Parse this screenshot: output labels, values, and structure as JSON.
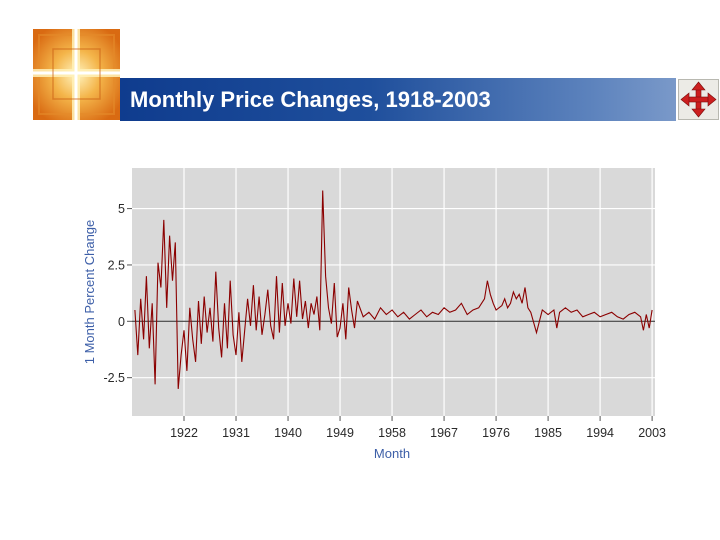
{
  "slide": {
    "title": "Monthly Price Changes, 1918-2003"
  },
  "icons": {
    "logo": "cross-logo-icon",
    "move": "move-arrows-icon"
  },
  "colors": {
    "title_bar": "#1f4f9c",
    "series": "#8b0000",
    "plot_background": "#d9d9d9",
    "axis_title": "#3d5fa8"
  },
  "chart_data": {
    "type": "line",
    "xlabel": "Month",
    "ylabel": "1 Month Percent Change",
    "xlim": [
      1913,
      2003.5
    ],
    "ylim": [
      -4.2,
      6.8
    ],
    "x_ticks": [
      1922,
      1931,
      1940,
      1949,
      1958,
      1967,
      1976,
      1985,
      1994,
      2003
    ],
    "x_tick_labels": [
      "1922",
      "1931",
      "1940",
      "1949",
      "1958",
      "1967",
      "1976",
      "1985",
      "1994",
      "2003"
    ],
    "y_ticks": [
      5,
      2.5,
      0,
      -2.5
    ],
    "y_tick_labels": [
      "5",
      "2.5",
      "0",
      "-2.5"
    ],
    "grid": true,
    "zero_line": true,
    "series": [
      {
        "x": [
          1913.5,
          1914.0,
          1914.5,
          1915.0,
          1915.5,
          1916.0,
          1916.5,
          1917.0,
          1917.5,
          1918.0,
          1918.5,
          1919.0,
          1919.5,
          1920.0,
          1920.5,
          1921.0,
          1921.5,
          1922.0,
          1922.5,
          1923.0,
          1923.5,
          1924.0,
          1924.5,
          1925.0,
          1925.5,
          1926.0,
          1926.5,
          1927.0,
          1927.5,
          1928.0,
          1928.5,
          1929.0,
          1929.5,
          1930.0,
          1930.5,
          1931.0,
          1931.5,
          1932.0,
          1932.5,
          1933.0,
          1933.5,
          1934.0,
          1934.5,
          1935.0,
          1935.5,
          1936.0,
          1936.5,
          1937.0,
          1937.5,
          1938.0,
          1938.5,
          1939.0,
          1939.5,
          1940.0,
          1940.5,
          1941.0,
          1941.5,
          1942.0,
          1942.5,
          1943.0,
          1943.5,
          1944.0,
          1944.5,
          1945.0,
          1945.5,
          1946.0,
          1946.5,
          1947.0,
          1947.5,
          1948.0,
          1948.5,
          1949.0,
          1949.5,
          1950.0,
          1950.5,
          1951.0,
          1951.5,
          1952.0,
          1953.0,
          1954.0,
          1955.0,
          1956.0,
          1957.0,
          1958.0,
          1959.0,
          1960.0,
          1961.0,
          1962.0,
          1963.0,
          1964.0,
          1965.0,
          1966.0,
          1967.0,
          1968.0,
          1969.0,
          1970.0,
          1971.0,
          1972.0,
          1973.0,
          1973.5,
          1974.0,
          1974.5,
          1975.0,
          1975.5,
          1976.0,
          1977.0,
          1977.5,
          1978.0,
          1978.5,
          1979.0,
          1979.5,
          1980.0,
          1980.5,
          1981.0,
          1981.5,
          1982.0,
          1983.0,
          1984.0,
          1985.0,
          1986.0,
          1986.5,
          1987.0,
          1988.0,
          1989.0,
          1990.0,
          1991.0,
          1992.0,
          1993.0,
          1994.0,
          1995.0,
          1996.0,
          1997.0,
          1998.0,
          1999.0,
          2000.0,
          2001.0,
          2001.5,
          2002.0,
          2002.5,
          2003.0
        ],
        "values": [
          0.5,
          -1.5,
          1.0,
          -0.8,
          2.0,
          -1.2,
          0.8,
          -2.8,
          2.6,
          1.5,
          4.5,
          0.6,
          3.8,
          1.8,
          3.5,
          -3.0,
          -1.5,
          -0.4,
          -2.2,
          0.6,
          -0.8,
          -1.8,
          0.9,
          -1.0,
          1.1,
          -0.5,
          0.6,
          -0.9,
          2.2,
          -0.3,
          -1.6,
          0.8,
          -1.2,
          1.8,
          -0.6,
          -1.5,
          0.4,
          -1.8,
          -0.4,
          1.0,
          -0.2,
          1.6,
          -0.4,
          1.1,
          -0.6,
          0.3,
          1.4,
          -0.2,
          -0.8,
          2.0,
          -0.5,
          1.7,
          -0.2,
          0.8,
          -0.1,
          1.9,
          0.2,
          1.8,
          0.1,
          0.9,
          -0.3,
          0.8,
          0.3,
          1.1,
          -0.4,
          5.8,
          2.0,
          0.6,
          -0.1,
          1.7,
          -0.7,
          -0.3,
          0.8,
          -0.8,
          1.5,
          0.5,
          -0.3,
          0.9,
          0.2,
          0.4,
          0.1,
          0.6,
          0.3,
          0.5,
          0.2,
          0.4,
          0.1,
          0.3,
          0.5,
          0.2,
          0.4,
          0.3,
          0.6,
          0.4,
          0.5,
          0.8,
          0.3,
          0.5,
          0.6,
          0.8,
          1.0,
          1.8,
          1.2,
          0.8,
          0.5,
          0.7,
          1.0,
          0.6,
          0.8,
          1.3,
          1.0,
          1.2,
          0.8,
          1.5,
          0.6,
          0.4,
          -0.5,
          0.5,
          0.3,
          0.5,
          -0.3,
          0.4,
          0.6,
          0.4,
          0.5,
          0.2,
          0.3,
          0.4,
          0.2,
          0.3,
          0.4,
          0.2,
          0.1,
          0.3,
          0.4,
          0.2,
          -0.4,
          0.3,
          -0.3,
          0.5
        ]
      }
    ]
  }
}
